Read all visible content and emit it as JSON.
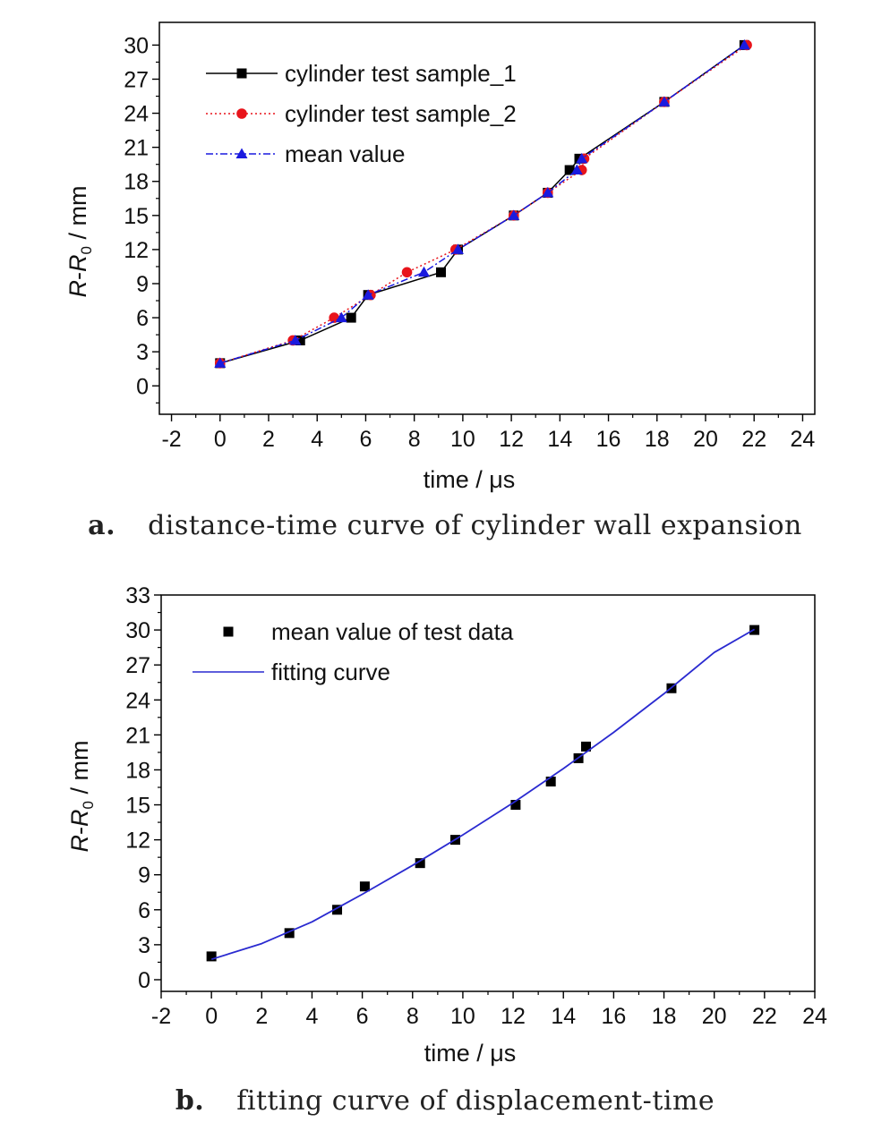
{
  "chart_data": [
    {
      "type": "line",
      "xlabel": "time / μs",
      "ylabel": "R-R0 / mm",
      "xlim": [
        -2.5,
        24.5
      ],
      "ylim": [
        -2.5,
        32
      ],
      "xticks": [
        -2,
        0,
        2,
        4,
        6,
        8,
        10,
        12,
        14,
        16,
        18,
        20,
        22,
        24
      ],
      "yticks": [
        0,
        3,
        6,
        9,
        12,
        15,
        18,
        21,
        24,
        27,
        30
      ],
      "legend_position": "top-left",
      "series": [
        {
          "name": "cylinder test sample_1",
          "color": "#000000",
          "marker": "square",
          "line_style": "solid",
          "x": [
            0,
            3.3,
            5.4,
            6.1,
            9.1,
            9.8,
            12.1,
            13.5,
            14.4,
            14.8,
            18.3,
            21.6
          ],
          "y": [
            2,
            4,
            6,
            8,
            10,
            12,
            15,
            17,
            19,
            20,
            25,
            30
          ]
        },
        {
          "name": "cylinder test sample_2",
          "color": "#e8141b",
          "marker": "circle",
          "line_style": "dotted",
          "x": [
            0,
            3.0,
            4.7,
            6.2,
            7.7,
            9.7,
            12.1,
            13.5,
            14.9,
            15.0,
            18.3,
            21.7
          ],
          "y": [
            2,
            4,
            6,
            8,
            10,
            12,
            15,
            17,
            19,
            20,
            25,
            30
          ]
        },
        {
          "name": "mean value",
          "color": "#1a1adf",
          "marker": "triangle",
          "line_style": "dashdot",
          "x": [
            0,
            3.1,
            5.0,
            6.1,
            8.4,
            9.8,
            12.1,
            13.5,
            14.7,
            14.9,
            18.3,
            21.6
          ],
          "y": [
            2,
            4,
            6,
            8,
            10,
            12,
            15,
            17,
            19,
            20,
            25,
            30
          ]
        }
      ]
    },
    {
      "type": "scatter",
      "xlabel": "time / μs",
      "ylabel": "R-R0 / mm",
      "xlim": [
        -2,
        24
      ],
      "ylim": [
        -1,
        33
      ],
      "xticks": [
        -2,
        0,
        2,
        4,
        6,
        8,
        10,
        12,
        14,
        16,
        18,
        20,
        22,
        24
      ],
      "yticks": [
        0,
        3,
        6,
        9,
        12,
        15,
        18,
        21,
        24,
        27,
        30,
        33
      ],
      "legend_position": "top-left",
      "series": [
        {
          "name": "mean value of test data",
          "color": "#000000",
          "marker": "square",
          "x": [
            0,
            3.1,
            5.0,
            6.1,
            8.3,
            9.7,
            12.1,
            13.5,
            14.6,
            14.9,
            18.3,
            21.6
          ],
          "y": [
            2,
            4,
            6,
            8,
            10,
            12,
            15,
            17,
            19,
            20,
            25,
            30
          ]
        },
        {
          "name": "fitting curve",
          "color": "#2a2ad0",
          "marker": "none",
          "line_style": "solid",
          "x": [
            0,
            2,
            4,
            6,
            8,
            10,
            12,
            14,
            16,
            18,
            20,
            21.6
          ],
          "y": [
            1.75,
            3.1,
            4.96,
            7.33,
            9.81,
            12.42,
            15.17,
            18.11,
            21.22,
            24.53,
            28.07,
            30.05
          ]
        }
      ]
    }
  ],
  "captions": {
    "a_letter": "a.",
    "a_text": "distance-time curve of cylinder wall expansion",
    "b_letter": "b.",
    "b_text": "fitting curve of displacement-time"
  }
}
